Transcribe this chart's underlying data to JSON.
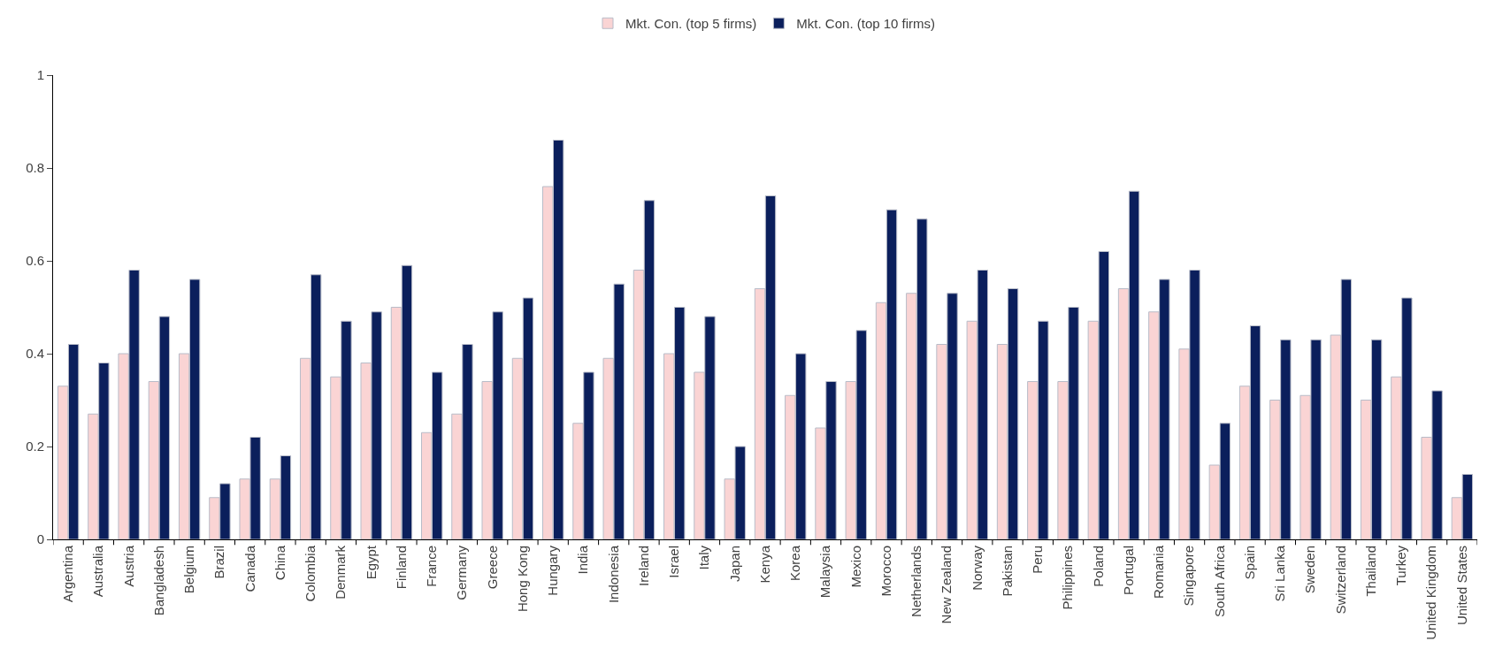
{
  "chart_data": {
    "type": "bar",
    "categories": [
      "Argentina",
      "Australia",
      "Austria",
      "Bangladesh",
      "Belgium",
      "Brazil",
      "Canada",
      "China",
      "Colombia",
      "Denmark",
      "Egypt",
      "Finland",
      "France",
      "Germany",
      "Greece",
      "Hong Kong",
      "Hungary",
      "India",
      "Indonesia",
      "Ireland",
      "Israel",
      "Italy",
      "Japan",
      "Kenya",
      "Korea",
      "Malaysia",
      "Mexico",
      "Morocco",
      "Netherlands",
      "New Zealand",
      "Norway",
      "Pakistan",
      "Peru",
      "Philippines",
      "Poland",
      "Portugal",
      "Romania",
      "Singapore",
      "South Africa",
      "Spain",
      "Sri Lanka",
      "Sweden",
      "Switzerland",
      "Thailand",
      "Turkey",
      "United Kingdom",
      "United States"
    ],
    "series": [
      {
        "name": "Mkt. Con. (top 5 firms)",
        "color": "#fad4d4",
        "values": [
          0.33,
          0.27,
          0.4,
          0.34,
          0.4,
          0.09,
          0.13,
          0.13,
          0.39,
          0.35,
          0.38,
          0.5,
          0.23,
          0.27,
          0.34,
          0.39,
          0.76,
          0.25,
          0.39,
          0.58,
          0.4,
          0.36,
          0.13,
          0.54,
          0.31,
          0.24,
          0.34,
          0.51,
          0.53,
          0.42,
          0.47,
          0.42,
          0.34,
          0.34,
          0.47,
          0.54,
          0.49,
          0.41,
          0.16,
          0.33,
          0.3,
          0.31,
          0.44,
          0.3,
          0.35,
          0.22,
          0.09
        ]
      },
      {
        "name": "Mkt. Con. (top 10 firms)",
        "color": "#0b1f5c",
        "values": [
          0.42,
          0.38,
          0.58,
          0.48,
          0.56,
          0.12,
          0.22,
          0.18,
          0.57,
          0.47,
          0.49,
          0.59,
          0.36,
          0.42,
          0.49,
          0.52,
          0.86,
          0.36,
          0.55,
          0.73,
          0.5,
          0.48,
          0.2,
          0.74,
          0.4,
          0.34,
          0.45,
          0.71,
          0.69,
          0.53,
          0.58,
          0.54,
          0.47,
          0.5,
          0.62,
          0.75,
          0.56,
          0.58,
          0.25,
          0.46,
          0.43,
          0.43,
          0.56,
          0.43,
          0.52,
          0.32,
          0.14
        ]
      }
    ],
    "ylim": [
      0,
      1
    ],
    "yticks": [
      0,
      0.2,
      0.4,
      0.6,
      0.8,
      1
    ],
    "legend": "top"
  }
}
